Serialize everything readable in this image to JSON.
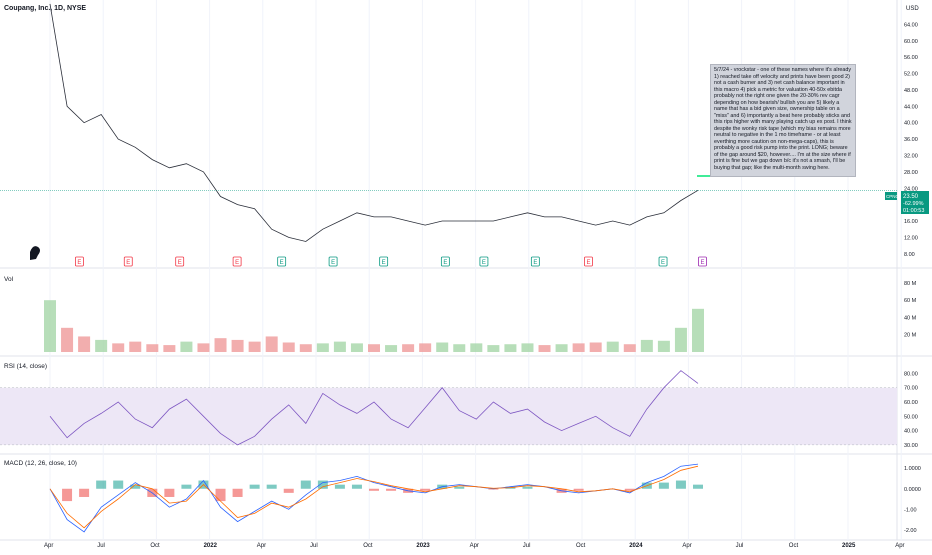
{
  "header": {
    "title": "Coupang, Inc., 1D, NYSE",
    "currency": "USD"
  },
  "note": {
    "text": "5/7/24 - vrockstar - one of these names where it's already 1) reached take off velocity and prints have been good 2) not a cash burner and 3) net cash balance important in this macro 4) pick a metric for valuation 40-50x ebitda probably not the right one given the 20-30% rev cagr depending on how bearish/ bullish you are 5) likely a name that has a bid given size, ownership table on a \"miss\" and 6) importantly a beat here probably sticks and this rips higher with many playing catch up ex post. I think despite the wonky risk tape (which my bias remains more neutral to negative in the 1 mo timeframe - or at least everthing more caution on non-mega-caps), this is probably a good risk pump into the print. LONG; beware of the gap around $20, however.... I'm at the size where if print is fine but we gap down b/c it's not a smash, I'll be buying that gap; like the multi-month swing here."
  },
  "price_badge": {
    "symbol": "CPNG",
    "price": "23.50",
    "change": "-62.99%",
    "countdown": "01:00:53",
    "color": "#089981"
  },
  "panes": {
    "volume": "Vol",
    "rsi": "RSI (14, close)",
    "macd": "MACD (12, 26, close, 10)"
  },
  "colors": {
    "line": "#2a2e39",
    "earnings_miss": "#f23645",
    "earnings_beat": "#089981",
    "rsi_line": "#7e57c2",
    "rsi_band": "#ede7f6",
    "macd_line": "#2962ff",
    "signal_line": "#ff6d00",
    "target_line": "#00e676",
    "vol_up": "#a5d6a7",
    "vol_down": "#ef9a9a"
  },
  "earnings_markers": [
    {
      "label": "E",
      "kind": "miss",
      "pos": 0.046
    },
    {
      "label": "E",
      "kind": "miss",
      "pos": 0.103
    },
    {
      "label": "E",
      "kind": "miss",
      "pos": 0.163
    },
    {
      "label": "E",
      "kind": "miss",
      "pos": 0.23
    },
    {
      "label": "E",
      "kind": "beat",
      "pos": 0.282
    },
    {
      "label": "E",
      "kind": "beat",
      "pos": 0.342
    },
    {
      "label": "E",
      "kind": "beat",
      "pos": 0.401
    },
    {
      "label": "E",
      "kind": "beat",
      "pos": 0.473
    },
    {
      "label": "E",
      "kind": "beat",
      "pos": 0.518
    },
    {
      "label": "E",
      "kind": "beat",
      "pos": 0.578
    },
    {
      "label": "E",
      "kind": "miss",
      "pos": 0.64
    },
    {
      "label": "E",
      "kind": "beat",
      "pos": 0.727
    },
    {
      "label": "E",
      "kind": "upcoming",
      "pos": 0.773
    }
  ],
  "chart_data": [
    {
      "type": "line",
      "pane": "price",
      "x": [
        "2021-03",
        "2021-04",
        "2021-05",
        "2021-06",
        "2021-07",
        "2021-08",
        "2021-09",
        "2021-10",
        "2021-11",
        "2021-12",
        "2022-01",
        "2022-02",
        "2022-03",
        "2022-04",
        "2022-05",
        "2022-06",
        "2022-07",
        "2022-08",
        "2022-09",
        "2022-10",
        "2022-11",
        "2022-12",
        "2023-01",
        "2023-02",
        "2023-03",
        "2023-04",
        "2023-05",
        "2023-06",
        "2023-07",
        "2023-08",
        "2023-09",
        "2023-10",
        "2023-11",
        "2023-12",
        "2024-01",
        "2024-02",
        "2024-03",
        "2024-04",
        "2024-05"
      ],
      "series": [
        {
          "values": [
            69,
            44,
            40,
            42,
            36,
            34,
            31,
            29,
            30,
            28,
            22,
            20,
            19,
            14,
            12,
            11,
            14,
            16,
            18,
            17,
            17,
            16,
            15,
            16,
            16,
            16,
            16,
            17,
            18,
            17,
            17,
            16,
            15,
            16,
            15,
            17,
            18,
            21,
            23.5
          ]
        }
      ],
      "y_ticks": [
        "8.00",
        "12.00",
        "16.00",
        "20.00",
        "24.00",
        "28.00",
        "32.00",
        "36.00",
        "40.00",
        "44.00",
        "48.00",
        "52.00",
        "56.00",
        "60.00",
        "64.00"
      ],
      "x_ticks": [
        "Apr",
        "Jul",
        "Oct",
        "2022",
        "Apr",
        "Jul",
        "Oct",
        "2023",
        "Apr",
        "Jul",
        "Oct",
        "2024",
        "Apr",
        "Jul",
        "Oct",
        "2025",
        "Apr"
      ],
      "ylim": [
        6,
        68
      ],
      "target_level": 27,
      "current_price": 23.5
    },
    {
      "type": "bar",
      "pane": "volume",
      "title": "Vol",
      "y_ticks": [
        "20 M",
        "40 M",
        "60 M",
        "80 M"
      ],
      "ylim": [
        0,
        88
      ],
      "values_m": [
        60,
        28,
        18,
        14,
        10,
        12,
        9,
        8,
        12,
        10,
        16,
        14,
        12,
        18,
        11,
        9,
        10,
        12,
        10,
        9,
        8,
        9,
        10,
        11,
        9,
        10,
        8,
        9,
        10,
        8,
        9,
        10,
        11,
        12,
        9,
        14,
        13,
        28,
        50
      ]
    },
    {
      "type": "line",
      "pane": "rsi",
      "title": "RSI (14, close)",
      "y_ticks": [
        "30.00",
        "40.00",
        "50.00",
        "60.00",
        "70.00",
        "80.00"
      ],
      "ylim": [
        25,
        88
      ],
      "bands": [
        30,
        70
      ],
      "values": [
        50,
        35,
        45,
        52,
        60,
        48,
        42,
        55,
        62,
        50,
        38,
        30,
        36,
        48,
        58,
        45,
        66,
        58,
        52,
        60,
        48,
        42,
        56,
        70,
        54,
        48,
        60,
        52,
        55,
        46,
        40,
        45,
        50,
        42,
        36,
        55,
        70,
        82,
        73
      ]
    },
    {
      "type": "line",
      "pane": "macd",
      "title": "MACD (12, 26, close, 10)",
      "y_ticks": [
        "-2.00",
        "-1.00",
        "0.0000",
        "1.0000"
      ],
      "ylim": [
        -2.3,
        1.4
      ],
      "series": [
        {
          "values": [
            0,
            -1.5,
            -2.1,
            -0.9,
            -0.3,
            0.3,
            -0.2,
            -0.9,
            -0.5,
            0.4,
            -0.9,
            -1.6,
            -1.1,
            -0.6,
            -1.0,
            -0.3,
            0.3,
            0.4,
            0.6,
            0.3,
            0.1,
            -0.1,
            -0.2,
            0.1,
            0.2,
            0.1,
            0.0,
            0.1,
            0.2,
            0.1,
            -0.1,
            -0.2,
            -0.1,
            0.0,
            -0.2,
            0.3,
            0.6,
            1.1,
            1.2
          ]
        },
        {
          "values": [
            0,
            -1.2,
            -1.9,
            -1.1,
            -0.5,
            0.2,
            0.0,
            -0.7,
            -0.6,
            0.2,
            -0.6,
            -1.4,
            -1.2,
            -0.7,
            -0.9,
            -0.5,
            0.1,
            0.3,
            0.5,
            0.35,
            0.15,
            0.0,
            -0.15,
            0.0,
            0.15,
            0.1,
            0.02,
            0.05,
            0.15,
            0.1,
            0.0,
            -0.15,
            -0.1,
            0.0,
            -0.15,
            0.15,
            0.45,
            0.9,
            1.1
          ]
        }
      ]
    }
  ]
}
